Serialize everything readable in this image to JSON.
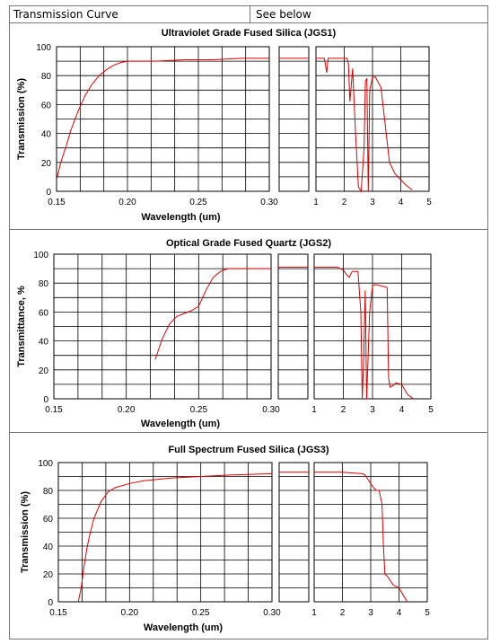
{
  "header": {
    "label": "Transmission Curve",
    "value": "See below"
  },
  "chart_data": [
    {
      "type": "line",
      "title": "Ultraviolet Grade Fused Silica (JGS1)",
      "xlabel": "Wavelength (um)",
      "ylabel": "Transmission (%)",
      "ylim": [
        0,
        100
      ],
      "yticks": [
        "0",
        "20",
        "40",
        "60",
        "80",
        "100"
      ],
      "sections": [
        {
          "xlim": [
            0.15,
            0.3
          ],
          "xticks": [
            "0.15",
            "0.20",
            "0.25",
            "0.30"
          ],
          "x": [
            0.15,
            0.153,
            0.157,
            0.16,
            0.165,
            0.17,
            0.175,
            0.18,
            0.185,
            0.19,
            0.195,
            0.2,
            0.21,
            0.22,
            0.24,
            0.26,
            0.28,
            0.3
          ],
          "y": [
            8,
            20,
            32,
            42,
            55,
            66,
            74,
            80,
            84,
            87,
            89,
            90,
            90,
            90,
            91,
            91,
            92,
            92
          ]
        },
        {
          "xlim": [
            0.3,
            0.33
          ],
          "xticks": [
            "0.30"
          ],
          "x": [
            0.3,
            0.33
          ],
          "y": [
            92,
            92
          ]
        },
        {
          "xlim": [
            1,
            5
          ],
          "xticks": [
            "1",
            "2",
            "3",
            "4",
            "5"
          ],
          "x": [
            1.0,
            1.3,
            1.38,
            1.43,
            1.5,
            2.0,
            2.1,
            2.15,
            2.2,
            2.3,
            2.4,
            2.5,
            2.6,
            2.7,
            2.75,
            2.8,
            2.85,
            2.9,
            3.0,
            3.1,
            3.3,
            3.6,
            3.8,
            4.0,
            4.2,
            4.4
          ],
          "y": [
            92,
            92,
            82,
            92,
            92,
            92,
            92,
            88,
            62,
            85,
            40,
            3,
            0,
            30,
            76,
            78,
            0,
            70,
            79,
            79,
            72,
            20,
            12,
            8,
            4,
            1
          ]
        }
      ]
    },
    {
      "type": "line",
      "title": "Optical Grade Fused Quartz  (JGS2)",
      "xlabel": "Wavelength (um)",
      "ylabel": "Transmittance, %",
      "ylim": [
        0,
        100
      ],
      "yticks": [
        "0",
        "20",
        "40",
        "60",
        "80",
        "100"
      ],
      "sections": [
        {
          "xlim": [
            0.15,
            0.3
          ],
          "xticks": [
            "0.15",
            "0.20",
            "0.25",
            "0.30"
          ],
          "x": [
            0.22,
            0.225,
            0.23,
            0.235,
            0.24,
            0.245,
            0.25,
            0.255,
            0.26,
            0.265,
            0.27,
            0.28,
            0.3
          ],
          "y": [
            27,
            42,
            52,
            57,
            59,
            61,
            64,
            75,
            84,
            88,
            90,
            90,
            90
          ]
        },
        {
          "xlim": [
            0.3,
            0.33
          ],
          "xticks": [
            "0.30"
          ],
          "x": [
            0.3,
            0.33
          ],
          "y": [
            91,
            91
          ]
        },
        {
          "xlim": [
            1,
            5
          ],
          "xticks": [
            "1",
            "2",
            "3",
            "4",
            "5"
          ],
          "x": [
            1.0,
            1.8,
            2.0,
            2.1,
            2.2,
            2.3,
            2.5,
            2.6,
            2.65,
            2.7,
            2.75,
            2.8,
            2.9,
            3.0,
            3.1,
            3.3,
            3.5,
            3.55,
            3.6,
            3.7,
            3.8,
            4.0,
            4.2,
            4.4
          ],
          "y": [
            91,
            91,
            89,
            86,
            84,
            88,
            88,
            60,
            0,
            30,
            75,
            0,
            60,
            78,
            79,
            78,
            77,
            15,
            8,
            9,
            11,
            10,
            3,
            0
          ]
        }
      ]
    },
    {
      "type": "line",
      "title": "Full Spectrum Fused Silica (JGS3)",
      "xlabel": "Wavelength (um)",
      "ylabel": "Transmission (%)",
      "ylim": [
        0,
        100
      ],
      "yticks": [
        "0",
        "20",
        "40",
        "60",
        "80",
        "100"
      ],
      "sections": [
        {
          "xlim": [
            0.15,
            0.3
          ],
          "xticks": [
            "0.15",
            "0.20",
            "0.25",
            "0.30"
          ],
          "x": [
            0.164,
            0.166,
            0.168,
            0.17,
            0.172,
            0.175,
            0.18,
            0.185,
            0.19,
            0.2,
            0.21,
            0.22,
            0.23,
            0.25,
            0.27,
            0.3
          ],
          "y": [
            0,
            10,
            25,
            38,
            48,
            60,
            72,
            79,
            82,
            85,
            87,
            88,
            89,
            90,
            91,
            92
          ]
        },
        {
          "xlim": [
            0.3,
            0.33
          ],
          "xticks": [
            "0.30"
          ],
          "x": [
            0.3,
            0.33
          ],
          "y": [
            93,
            93
          ]
        },
        {
          "xlim": [
            1,
            5
          ],
          "xticks": [
            "1",
            "2",
            "3",
            "4",
            "5"
          ],
          "x": [
            1.0,
            2.0,
            2.7,
            2.8,
            2.9,
            3.0,
            3.1,
            3.2,
            3.3,
            3.4,
            3.45,
            3.5,
            3.6,
            3.7,
            3.8,
            4.0,
            4.2,
            4.3
          ],
          "y": [
            93,
            93,
            92,
            91,
            88,
            85,
            82,
            80,
            80,
            70,
            40,
            20,
            18,
            15,
            12,
            10,
            3,
            0
          ]
        }
      ]
    }
  ]
}
